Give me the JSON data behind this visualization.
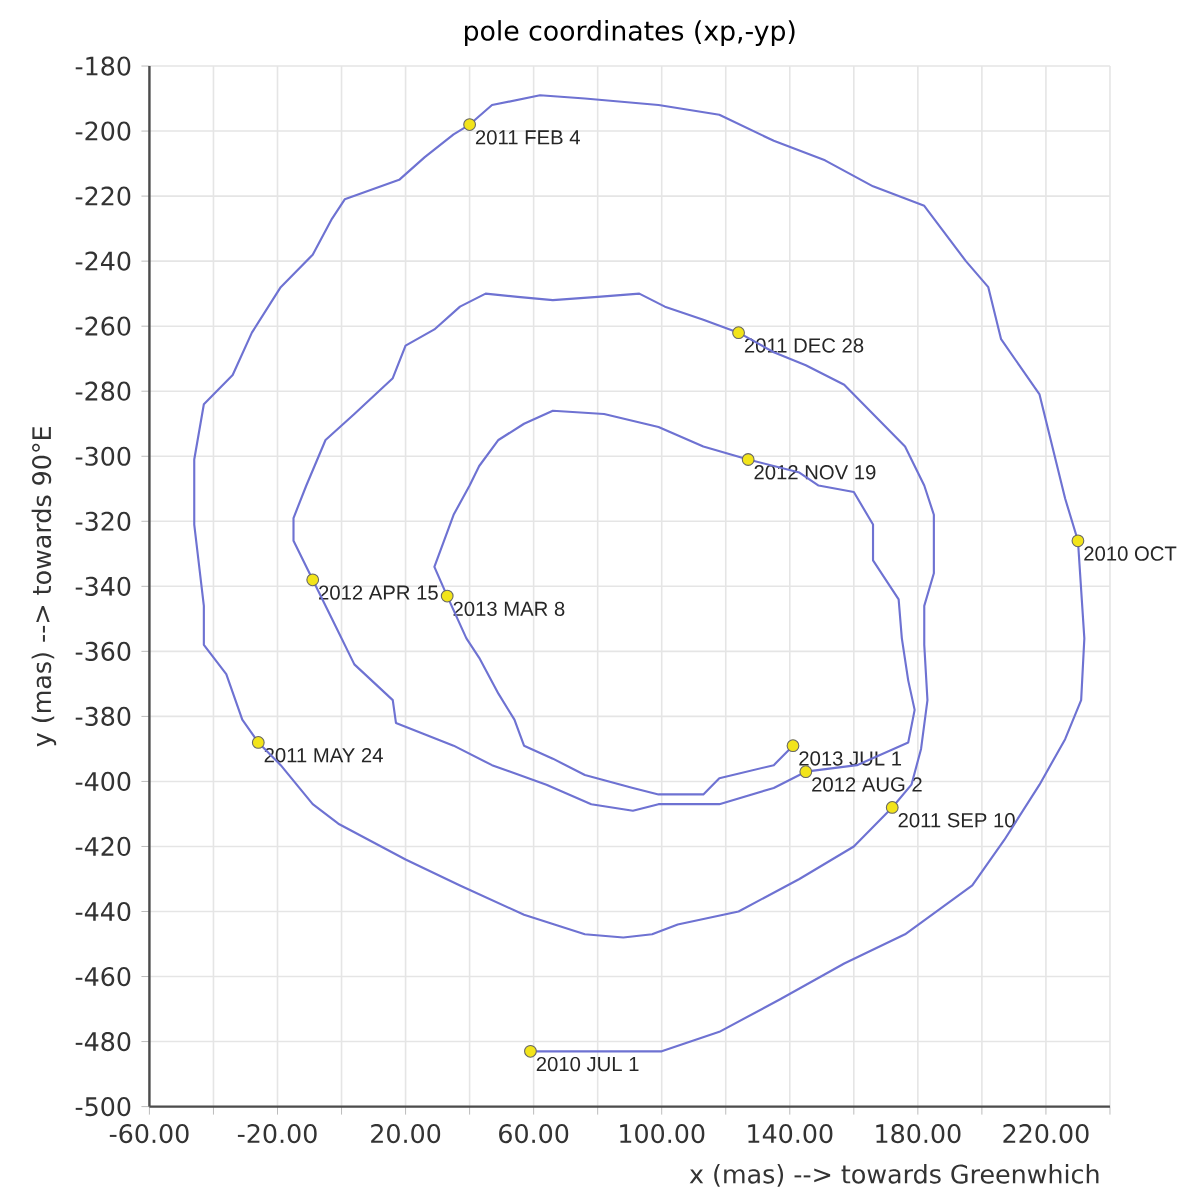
{
  "chart_data": {
    "type": "line",
    "title": "pole coordinates (xp,-yp)",
    "xlabel": "x (mas) --> towards Greenwhich",
    "ylabel": "y (mas) --> towards 90°E",
    "xlim": [
      -60,
      240
    ],
    "xticks": [
      {
        "value": -60,
        "label": "-60.00"
      },
      {
        "value": -40,
        "label": null
      },
      {
        "value": -20,
        "label": "-20.00"
      },
      {
        "value": 0,
        "label": null
      },
      {
        "value": 20,
        "label": "20.00"
      },
      {
        "value": 40,
        "label": null
      },
      {
        "value": 60,
        "label": "60.00"
      },
      {
        "value": 80,
        "label": null
      },
      {
        "value": 100,
        "label": "100.00"
      },
      {
        "value": 120,
        "label": null
      },
      {
        "value": 140,
        "label": "140.00"
      },
      {
        "value": 160,
        "label": null
      },
      {
        "value": 180,
        "label": "180.00"
      },
      {
        "value": 200,
        "label": null
      },
      {
        "value": 220,
        "label": "220.00"
      },
      {
        "value": 240,
        "label": null
      }
    ],
    "ylim": [
      -500,
      -180
    ],
    "yticks": [
      -500,
      -480,
      -460,
      -440,
      -420,
      -400,
      -380,
      -360,
      -340,
      -320,
      -300,
      -280,
      -260,
      -240,
      -220,
      -200,
      -180
    ],
    "grid": true,
    "series": [
      {
        "color": "#6e72d2",
        "line_style": "solid",
        "x": [
          59,
          100,
          118,
          137,
          157,
          176,
          197,
          207,
          218,
          226,
          231,
          232,
          230,
          226,
          218,
          206,
          202,
          195,
          182,
          166,
          151,
          135,
          118,
          99,
          76,
          62,
          47,
          40,
          35,
          26,
          18,
          1,
          -3,
          -9,
          -19,
          -28,
          -34,
          -43,
          -46,
          -46,
          -43,
          -43,
          -36,
          -31,
          -26,
          -19,
          -9,
          -1,
          20,
          37,
          57,
          76,
          88,
          97,
          105,
          124,
          143,
          160,
          172,
          178,
          181,
          183,
          182,
          182,
          185,
          185,
          182,
          176,
          166,
          157,
          145,
          135,
          124,
          113,
          101,
          93,
          80,
          66,
          55,
          45,
          37,
          29,
          20,
          16,
          4,
          -5,
          -11,
          -15,
          -15,
          -9,
          -3,
          4,
          16,
          17,
          35,
          47,
          64,
          78,
          91,
          99,
          118,
          135,
          145,
          161,
          177,
          179,
          177,
          175,
          174,
          166,
          166,
          160,
          149,
          143,
          127,
          113,
          99,
          82,
          66,
          57,
          49,
          43,
          40,
          35,
          32,
          29,
          33,
          39,
          43,
          49,
          54,
          57,
          66,
          76,
          91,
          99,
          113,
          118,
          135,
          141
        ],
        "values": [
          -483,
          -483,
          -477,
          -467,
          -456,
          -447,
          -432,
          -418,
          -401,
          -387,
          -375,
          -356,
          -326,
          -313,
          -281,
          -264,
          -248,
          -240,
          -223,
          -217,
          -209,
          -203,
          -195,
          -192,
          -190,
          -189,
          -192,
          -198,
          -201,
          -208,
          -215,
          -221,
          -227,
          -238,
          -248,
          -262,
          -275,
          -284,
          -301,
          -321,
          -346,
          -358,
          -367,
          -381,
          -388,
          -395,
          -407,
          -413,
          -424,
          -432,
          -441,
          -447,
          -448,
          -447,
          -444,
          -440,
          -430,
          -420,
          -408,
          -401,
          -390,
          -375,
          -358,
          -346,
          -336,
          -318,
          -309,
          -297,
          -287,
          -278,
          -272,
          -268,
          -262,
          -258,
          -254,
          -250,
          -251,
          -252,
          -251,
          -250,
          -254,
          -261,
          -266,
          -276,
          -287,
          -295,
          -309,
          -319,
          -326,
          -338,
          -350,
          -364,
          -375,
          -382,
          -389,
          -395,
          -401,
          -407,
          -409,
          -407,
          -407,
          -402,
          -397,
          -395,
          -388,
          -378,
          -369,
          -356,
          -344,
          -332,
          -321,
          -311,
          -309,
          -305,
          -301,
          -297,
          -291,
          -287,
          -286,
          -290,
          -295,
          -303,
          -309,
          -318,
          -326,
          -334,
          -343,
          -356,
          -362,
          -373,
          -381,
          -389,
          -393,
          -398,
          -402,
          -404,
          -404,
          -399,
          -395,
          -389
        ]
      },
      {
        "type": "scatter",
        "color": "#f2e41a",
        "marker": "circle",
        "x": [
          59,
          230,
          40,
          -26,
          172,
          124,
          -9,
          145,
          127,
          33,
          141
        ],
        "values": [
          -483,
          -326,
          -198,
          -388,
          -408,
          -262,
          -338,
          -397,
          -301,
          -343,
          -389
        ]
      }
    ],
    "annotations": [
      {
        "text": "2010 JUL 1",
        "x": 59,
        "y": -483
      },
      {
        "text": "2010 OCT",
        "x": 230,
        "y": -326
      },
      {
        "text": "2011 FEB 4",
        "x": 40,
        "y": -198
      },
      {
        "text": "2011 MAY 24",
        "x": -26,
        "y": -388
      },
      {
        "text": "2011 SEP 10",
        "x": 172,
        "y": -408
      },
      {
        "text": "2011 DEC 28",
        "x": 124,
        "y": -262
      },
      {
        "text": "2012 APR 15",
        "x": -9,
        "y": -338
      },
      {
        "text": "2012 AUG 2",
        "x": 145,
        "y": -397
      },
      {
        "text": "2012 NOV 19",
        "x": 127,
        "y": -301
      },
      {
        "text": "2013 MAR 8",
        "x": 33,
        "y": -343
      },
      {
        "text": "2013 JUL 1",
        "x": 141,
        "y": -389
      }
    ]
  }
}
